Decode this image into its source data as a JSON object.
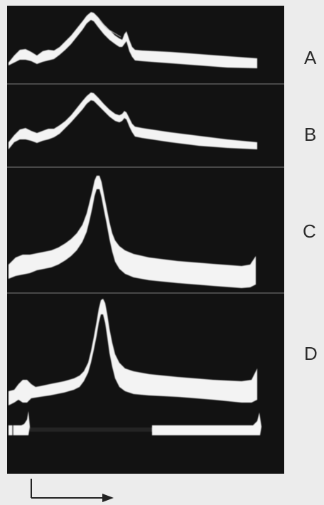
{
  "figure": {
    "panels": [
      {
        "id": "A",
        "label": "A"
      },
      {
        "id": "B",
        "label": "B"
      },
      {
        "id": "C",
        "label": "C"
      },
      {
        "id": "D",
        "label": "D"
      }
    ],
    "colors": {
      "page": "#ececec",
      "photo_background": "#121212",
      "trace": "#f2f2f2",
      "separator": "#5a5a5a",
      "scale_bar": "#222222"
    },
    "icons": {
      "scale": "time-and-amplitude-scale-arrow-icon"
    }
  }
}
